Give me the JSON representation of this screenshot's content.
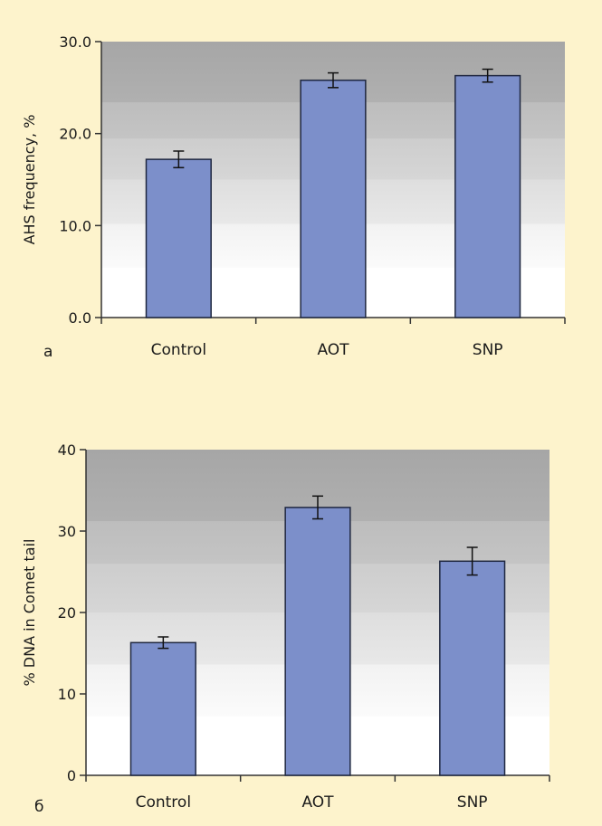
{
  "chart_data": [
    {
      "type": "bar",
      "panel_label": "a",
      "ylabel": "AHS frequency, %",
      "ylim": [
        0,
        30
      ],
      "yticks": [
        0,
        10,
        20,
        30
      ],
      "ytick_labels": [
        "0.0",
        "10.0",
        "20.0",
        "30.0"
      ],
      "categories": [
        "Control",
        "AOT",
        "SNP"
      ],
      "values": [
        17.2,
        25.8,
        26.3
      ],
      "errors": [
        0.9,
        0.8,
        0.7
      ],
      "grid": false,
      "legend": "none"
    },
    {
      "type": "bar",
      "panel_label": "б",
      "ylabel": "% DNA in Comet tail",
      "ylim": [
        0,
        40
      ],
      "yticks": [
        0,
        10,
        20,
        30,
        40
      ],
      "ytick_labels": [
        "0",
        "10",
        "20",
        "30",
        "40"
      ],
      "categories": [
        "Control",
        "AOT",
        "SNP"
      ],
      "values": [
        16.3,
        32.9,
        26.3
      ],
      "errors": [
        0.7,
        1.4,
        1.7
      ],
      "grid": false,
      "legend": "none"
    }
  ],
  "colors": {
    "background": "#fdf3cc",
    "bar_fill": "#7c8fca",
    "bar_stroke": "#1f2740",
    "axis": "#333333",
    "plot_top": "#a8a8a8",
    "plot_bottom": "#ffffff"
  }
}
